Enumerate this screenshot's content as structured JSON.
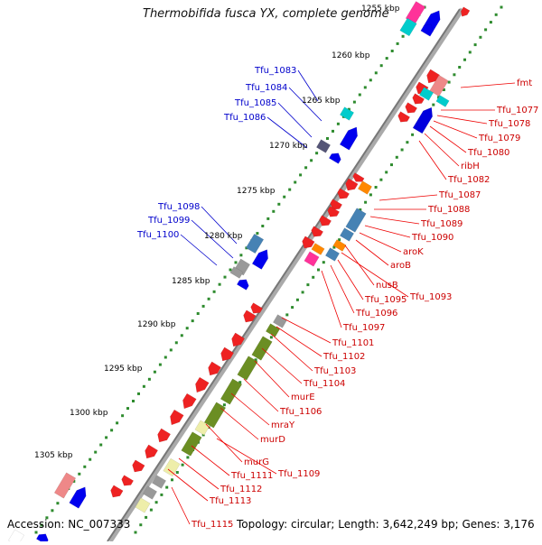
{
  "title": "Thermobifida fusca YX, complete genome",
  "accession_label": "Accession: NC_007333",
  "info_label": "Topology: circular; Length: 3,642,249 bp; Genes: 3,176",
  "colors": {
    "forward": "#0000ee",
    "reverse": "#ee0000",
    "forward_label": "#0000cc",
    "reverse_label": "#cc0000",
    "backbone": "#777777",
    "tick": "#2e8b2e",
    "olive": "#6b8e23",
    "yellow": "#eeeeaa",
    "pink": "#ff3399",
    "cyan": "#00cccc",
    "steel": "#4682b4",
    "salmon": "#ee8888",
    "orange": "#ff8800",
    "grey": "#999999"
  },
  "kbp_labels": [
    "1255 kbp",
    "1260 kbp",
    "1265 kbp",
    "1270 kbp",
    "1275 kbp",
    "1280 kbp",
    "1285 kbp",
    "1290 kbp",
    "1295 kbp",
    "1300 kbp",
    "1305 kbp"
  ],
  "forward_labels": [
    "Tfu_1083",
    "Tfu_1084",
    "Tfu_1085",
    "Tfu_1086",
    "Tfu_1098",
    "Tfu_1099",
    "Tfu_1100"
  ],
  "reverse_labels": [
    "fmt",
    "Tfu_1077",
    "Tfu_1078",
    "Tfu_1079",
    "Tfu_1080",
    "ribH",
    "Tfu_1082",
    "Tfu_1087",
    "Tfu_1088",
    "Tfu_1089",
    "Tfu_1090",
    "aroK",
    "aroB",
    "nusB",
    "Tfu_1093",
    "Tfu_1095",
    "Tfu_1096",
    "Tfu_1097",
    "Tfu_1101",
    "Tfu_1102",
    "Tfu_1103",
    "Tfu_1104",
    "murE",
    "Tfu_1106",
    "mraY",
    "murD",
    "murG",
    "Tfu_1109",
    "Tfu_1111",
    "Tfu_1112",
    "Tfu_1113",
    "Tfu_1115"
  ]
}
